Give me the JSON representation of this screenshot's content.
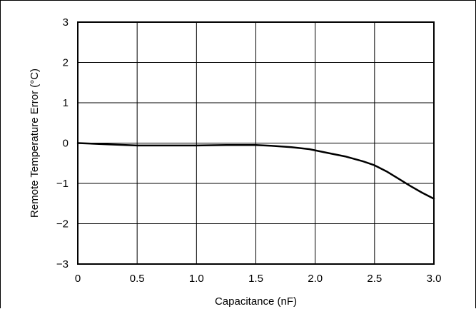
{
  "chart_data": {
    "type": "line",
    "title": "",
    "xlabel": "Capacitance (nF)",
    "ylabel": "Remote Temperature Error (°C)",
    "xlim": [
      0,
      3.0
    ],
    "ylim": [
      -3,
      3
    ],
    "x_ticks": [
      "0",
      "0.5",
      "1.0",
      "1.5",
      "2.0",
      "2.5",
      "3.0"
    ],
    "y_ticks": [
      "3",
      "2",
      "1",
      "0",
      "−1",
      "−2",
      "−3"
    ],
    "grid": true,
    "line_color": "#000000",
    "grid_color": "#000000",
    "series": [
      {
        "x": [
          0,
          0.25,
          0.5,
          0.75,
          1.0,
          1.25,
          1.5,
          1.65,
          1.8,
          1.95,
          2.1,
          2.25,
          2.4,
          2.5,
          2.6,
          2.7,
          2.8,
          2.9,
          3.0
        ],
        "y": [
          0,
          -0.03,
          -0.06,
          -0.06,
          -0.06,
          -0.05,
          -0.05,
          -0.07,
          -0.1,
          -0.15,
          -0.24,
          -0.33,
          -0.45,
          -0.55,
          -0.7,
          -0.88,
          -1.06,
          -1.23,
          -1.38
        ]
      }
    ]
  }
}
